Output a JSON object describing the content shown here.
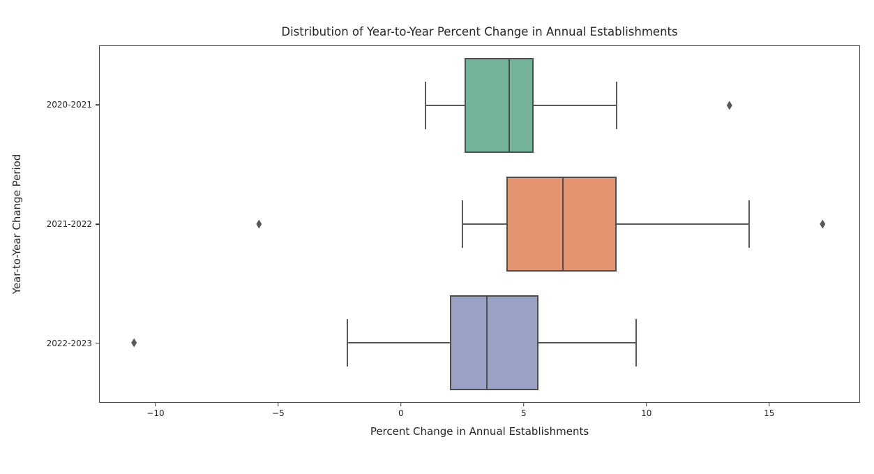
{
  "figure": {
    "title": "Distribution of Year-to-Year Percent Change in Annual Establishments"
  },
  "axes": {
    "xlabel": "Percent Change in Annual Establishments",
    "ylabel": "Year-to-Year Change Period"
  },
  "chart_data": {
    "type": "boxplot",
    "orientation": "horizontal",
    "title": "Distribution of Year-to-Year Percent Change in Annual Establishments",
    "xlabel": "Percent Change in Annual Establishments",
    "ylabel": "Year-to-Year Change Period",
    "xlim": [
      -12.3,
      18.7
    ],
    "x_ticks": [
      -10,
      -5,
      0,
      5,
      10,
      15
    ],
    "x_tick_labels": [
      "−10",
      "−5",
      "0",
      "5",
      "10",
      "15"
    ],
    "grid": false,
    "legend": "none",
    "categories": [
      "2020-2021",
      "2021-2022",
      "2022-2023"
    ],
    "series": [
      {
        "label": "2020-2021",
        "box_color": "#74b29a",
        "whisker_low": 1.0,
        "q1": 2.6,
        "median": 4.4,
        "q3": 5.4,
        "whisker_high": 8.8,
        "outliers": [
          13.4
        ]
      },
      {
        "label": "2021-2022",
        "box_color": "#e59472",
        "whisker_low": 2.5,
        "q1": 4.3,
        "median": 6.6,
        "q3": 8.8,
        "whisker_high": 14.2,
        "outliers": [
          -5.8,
          17.2
        ]
      },
      {
        "label": "2022-2023",
        "box_color": "#99a2c5",
        "whisker_low": -2.2,
        "q1": 2.0,
        "median": 3.5,
        "q3": 5.6,
        "whisker_high": 9.6,
        "outliers": [
          -10.9
        ]
      }
    ],
    "style": {
      "box_edge_color": "#4d4d4d",
      "whisker_color": "#5a5a5a",
      "outlier_color": "#595959",
      "box_width_fraction": 0.8
    }
  }
}
